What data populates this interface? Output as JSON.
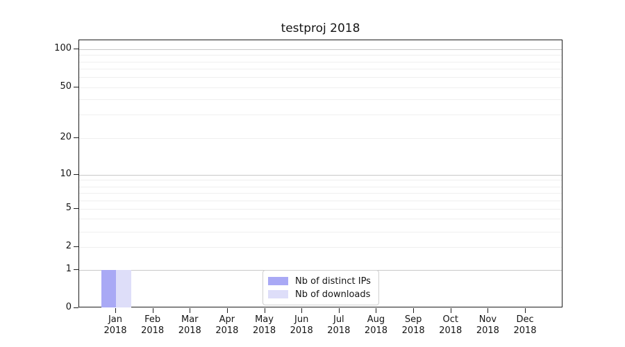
{
  "chart_data": {
    "type": "bar",
    "title": "testproj 2018",
    "months": [
      "Jan",
      "Feb",
      "Mar",
      "Apr",
      "May",
      "Jun",
      "Jul",
      "Aug",
      "Sep",
      "Oct",
      "Nov",
      "Dec"
    ],
    "year": "2018",
    "categories": [
      "Jan 2018",
      "Feb 2018",
      "Mar 2018",
      "Apr 2018",
      "May 2018",
      "Jun 2018",
      "Jul 2018",
      "Aug 2018",
      "Sep 2018",
      "Oct 2018",
      "Nov 2018",
      "Dec 2018"
    ],
    "series": [
      {
        "name": "Nb of distinct IPs",
        "color": "#a9a9f5",
        "values": [
          1,
          0,
          0,
          0,
          0,
          0,
          0,
          0,
          0,
          0,
          0,
          0
        ]
      },
      {
        "name": "Nb of downloads",
        "color": "#dedef9",
        "values": [
          1,
          0,
          0,
          0,
          0,
          0,
          0,
          0,
          0,
          0,
          0,
          0
        ]
      }
    ],
    "y_axis": {
      "tick_labels": [
        "0",
        "1",
        "2",
        "5",
        "10",
        "20",
        "50",
        "100"
      ],
      "scale": "symlog",
      "range": [
        0,
        100
      ],
      "grid": "on"
    },
    "x_axis": {
      "tick_label_format": "Month over Year",
      "grid": "off"
    },
    "legend": {
      "position": "lower center",
      "entries": [
        "Nb of distinct IPs",
        "Nb of downloads"
      ]
    },
    "colors": {
      "frame": "#1c1c1c",
      "grid_major": "#c8c8c8",
      "grid_minor": "#efefef",
      "background": "#ffffff"
    }
  }
}
